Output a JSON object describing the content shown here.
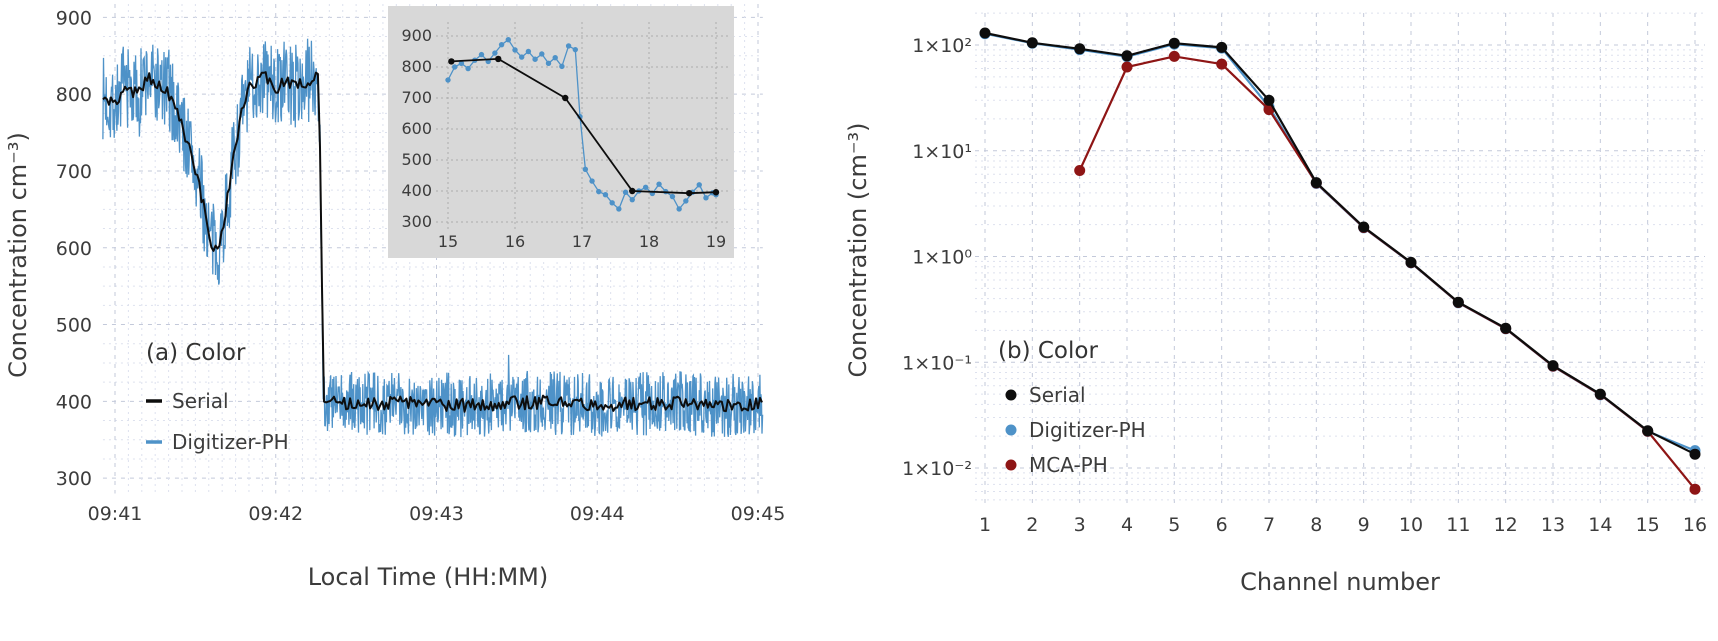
{
  "figure": {
    "type": "two-panel scientific figure",
    "background": "#ffffff"
  },
  "colors": {
    "serial": "#0d0d0d",
    "digitizer": "#4e92c8",
    "mca": "#8e1515",
    "grid_major": "#c3c9da",
    "grid_minor": "#dde1ee",
    "text": "#3c3c3c",
    "title_text": "#333333",
    "inset_bg": "#d8d8d8",
    "inset_grid": "#ababab",
    "background": "#ffffff"
  },
  "chart_data": [
    {
      "id": "panel-a",
      "type": "line",
      "title": "(a) Color",
      "xlabel": "Local Time (HH:MM)",
      "ylabel": "Concentration cm⁻³)",
      "x_tick_labels": [
        "09:41",
        "09:42",
        "09:43",
        "09:44",
        "09:45"
      ],
      "x_tick_minutes": [
        0,
        1,
        2,
        3,
        4
      ],
      "y_ticks": [
        300,
        400,
        500,
        600,
        700,
        800,
        900
      ],
      "xlim_minutes": [
        -0.075,
        4.03
      ],
      "ylim": [
        280,
        920
      ],
      "grid": "dashed major and minor, both axes",
      "legend_position": "inside lower-left",
      "legend": [
        {
          "label": "Serial",
          "color_key": "serial"
        },
        {
          "label": "Digitizer-PH",
          "color_key": "digitizer"
        }
      ],
      "description": "Concentration near 800 cm^-3 with a dip to ~600 around 09:41:37, then a sharp step down to ~400 at about 09:42:17. Serial is the smoothed black trace, Digitizer-PH the high-rate noisy blue trace.",
      "serial_waypoints": [
        [
          -0.075,
          795
        ],
        [
          0,
          788
        ],
        [
          0.07,
          812
        ],
        [
          0.14,
          798
        ],
        [
          0.2,
          822
        ],
        [
          0.27,
          812
        ],
        [
          0.33,
          800
        ],
        [
          0.4,
          768
        ],
        [
          0.47,
          726
        ],
        [
          0.54,
          664
        ],
        [
          0.6,
          606
        ],
        [
          0.63,
          598
        ],
        [
          0.67,
          622
        ],
        [
          0.73,
          706
        ],
        [
          0.79,
          775
        ],
        [
          0.85,
          815
        ],
        [
          0.93,
          822
        ],
        [
          1.0,
          808
        ],
        [
          1.07,
          818
        ],
        [
          1.13,
          810
        ],
        [
          1.2,
          818
        ],
        [
          1.2625,
          826
        ],
        [
          1.279,
          700
        ],
        [
          1.296,
          400
        ],
        [
          1.4,
          396
        ],
        [
          1.8,
          398
        ],
        [
          2.2,
          395
        ],
        [
          2.6,
          399
        ],
        [
          3.0,
          396
        ],
        [
          3.4,
          398
        ],
        [
          3.8,
          395
        ],
        [
          4.03,
          397
        ]
      ],
      "noise": {
        "seed": 7,
        "digitizer_amp_before": 55,
        "digitizer_amp_after": 42,
        "serial_amp": 9,
        "step_minute": 1.283
      },
      "inset": {
        "x_ticks": [
          15,
          16,
          17,
          18,
          19
        ],
        "y_ticks": [
          300,
          400,
          500,
          600,
          700,
          800,
          900
        ],
        "xlim": [
          14.8,
          19.15
        ],
        "ylim": [
          270,
          945
        ],
        "serial_points": [
          [
            15.05,
            818
          ],
          [
            15.75,
            826
          ],
          [
            16.75,
            700
          ],
          [
            17.75,
            400
          ],
          [
            18.6,
            393
          ],
          [
            19,
            396
          ]
        ],
        "digitizer_points": [
          [
            15.0,
            758
          ],
          [
            15.1,
            800
          ],
          [
            15.2,
            812
          ],
          [
            15.3,
            795
          ],
          [
            15.4,
            822
          ],
          [
            15.5,
            840
          ],
          [
            15.6,
            818
          ],
          [
            15.7,
            845
          ],
          [
            15.8,
            872
          ],
          [
            15.9,
            888
          ],
          [
            16.0,
            855
          ],
          [
            16.1,
            832
          ],
          [
            16.2,
            850
          ],
          [
            16.3,
            825
          ],
          [
            16.4,
            842
          ],
          [
            16.5,
            812
          ],
          [
            16.6,
            830
          ],
          [
            16.7,
            802
          ],
          [
            16.8,
            868
          ],
          [
            16.9,
            856
          ],
          [
            16.97,
            640
          ],
          [
            17.05,
            470
          ],
          [
            17.15,
            432
          ],
          [
            17.25,
            398
          ],
          [
            17.35,
            388
          ],
          [
            17.45,
            362
          ],
          [
            17.55,
            342
          ],
          [
            17.65,
            396
          ],
          [
            17.75,
            372
          ],
          [
            17.85,
            400
          ],
          [
            17.95,
            412
          ],
          [
            18.05,
            392
          ],
          [
            18.15,
            422
          ],
          [
            18.25,
            398
          ],
          [
            18.35,
            382
          ],
          [
            18.45,
            342
          ],
          [
            18.55,
            368
          ],
          [
            18.65,
            396
          ],
          [
            18.75,
            420
          ],
          [
            18.85,
            378
          ],
          [
            18.95,
            394
          ],
          [
            19.0,
            388
          ]
        ]
      }
    },
    {
      "id": "panel-b",
      "type": "scatter",
      "subtype": "log-y line+marker",
      "title": "(b) Color",
      "xlabel": "Channel number",
      "ylabel": "Concentration (cm⁻³)",
      "categories": [
        1,
        2,
        3,
        4,
        5,
        6,
        7,
        8,
        9,
        10,
        11,
        12,
        13,
        14,
        15,
        16
      ],
      "y_tick_labels": [
        "1×10²",
        "1×10¹",
        "1×10⁰",
        "1×10⁻¹",
        "1×10⁻²"
      ],
      "y_tick_values": [
        100,
        10,
        1,
        0.1,
        0.01
      ],
      "ylim": [
        0.0045,
        200
      ],
      "grid": "dashed; vertical at each channel, horizontal at log decades and minors",
      "legend_position": "inside lower-left",
      "series": [
        {
          "name": "Serial",
          "color_key": "serial",
          "values": [
            130,
            105,
            92,
            79,
            104,
            95,
            30,
            5.0,
            1.9,
            0.88,
            0.37,
            0.21,
            0.093,
            0.05,
            0.0225,
            0.0135
          ]
        },
        {
          "name": "Digitizer-PH",
          "color_key": "digitizer",
          "values": [
            128,
            104,
            90.5,
            77.5,
            102,
            93.5,
            26,
            4.9,
            1.87,
            0.87,
            0.365,
            0.207,
            0.0915,
            0.0492,
            0.0222,
            0.0146
          ]
        },
        {
          "name": "MCA-PH",
          "color_key": "mca",
          "values": [
            null,
            null,
            6.5,
            62,
            78,
            66,
            24.5,
            4.95,
            1.88,
            0.875,
            0.367,
            0.208,
            0.092,
            0.0495,
            0.0223,
            0.0063
          ]
        }
      ]
    }
  ]
}
